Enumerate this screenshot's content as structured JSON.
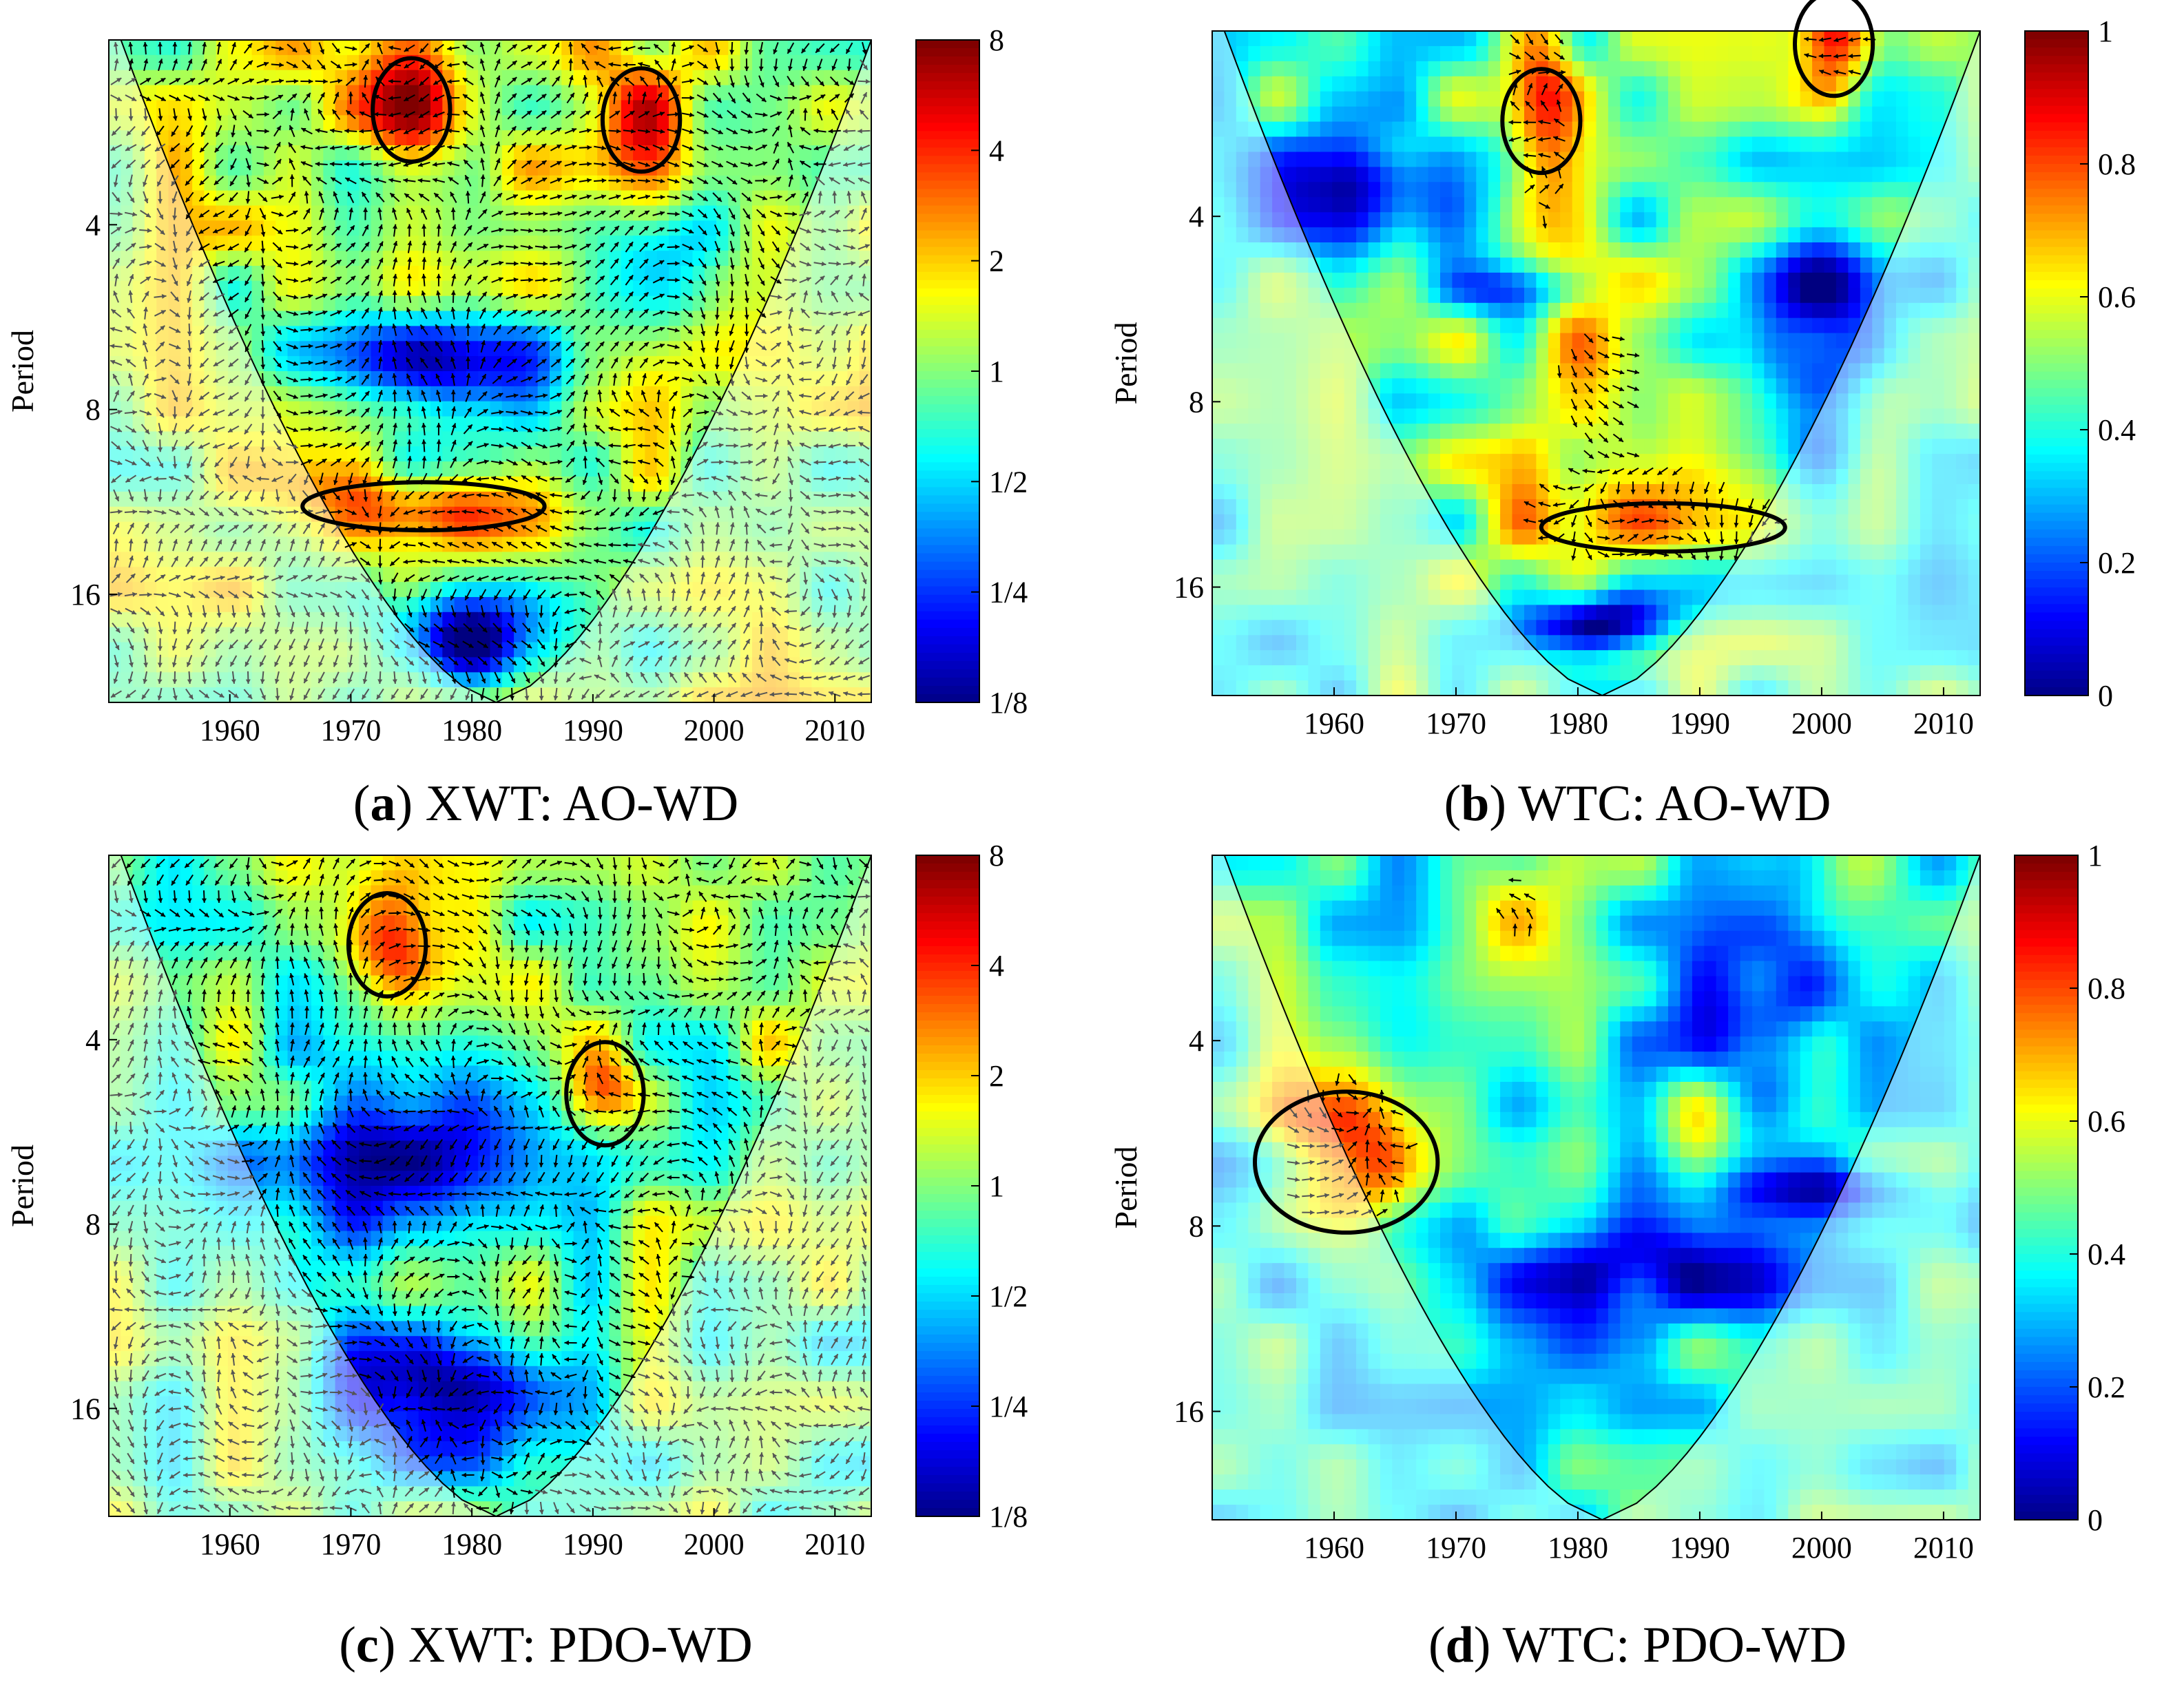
{
  "figure": {
    "panels": [
      {
        "letter": "a",
        "title": "XWT: AO-WD"
      },
      {
        "letter": "b",
        "title": "WTC: AO-WD"
      },
      {
        "letter": "c",
        "title": "XWT: PDO-WD"
      },
      {
        "letter": "d",
        "title": "WTC: PDO-WD"
      }
    ]
  },
  "chart_data": [
    {
      "id": "a",
      "type": "heatmap",
      "title": "(a) XWT: AO-WD",
      "xlabel": "",
      "ylabel": "Period",
      "xlim": [
        1950,
        2013
      ],
      "ylim": [
        2,
        24
      ],
      "yscale": "log2",
      "xticks": [
        "1960",
        "1970",
        "1980",
        "1990",
        "2000",
        "2010"
      ],
      "yticks": [
        "4",
        "8",
        "16"
      ],
      "colorbar": {
        "ticks": [
          "8",
          "4",
          "2",
          "1",
          "1/2",
          "1/4",
          "1/8"
        ],
        "range": [
          0.125,
          8
        ],
        "scale": "log2"
      },
      "significant_regions": [
        {
          "x_center": 1975,
          "period_center": 2.6,
          "label": "sig-1"
        },
        {
          "x_center": 1994,
          "period_center": 2.7,
          "label": "sig-2"
        },
        {
          "x_center": 1976,
          "period_center": 11.5,
          "label": "sig-3"
        }
      ]
    },
    {
      "id": "b",
      "type": "heatmap",
      "title": "(b) WTC: AO-WD",
      "xlabel": "",
      "ylabel": "Period",
      "xlim": [
        1950,
        2013
      ],
      "ylim": [
        2,
        24
      ],
      "yscale": "log2",
      "xticks": [
        "1960",
        "1970",
        "1980",
        "1990",
        "2000",
        "2010"
      ],
      "yticks": [
        "4",
        "8",
        "16"
      ],
      "colorbar": {
        "ticks": [
          "1",
          "0.8",
          "0.6",
          "0.4",
          "0.2",
          "0"
        ],
        "range": [
          0,
          1
        ],
        "scale": "linear"
      },
      "significant_regions": [
        {
          "x_center": 1977,
          "period_center": 2.8,
          "label": "sig-1"
        },
        {
          "x_center": 2001,
          "period_center": 2.1,
          "label": "sig-2"
        },
        {
          "x_center": 1987,
          "period_center": 12.8,
          "label": "sig-3"
        }
      ]
    },
    {
      "id": "c",
      "type": "heatmap",
      "title": "(c) XWT: PDO-WD",
      "xlabel": "",
      "ylabel": "Period",
      "xlim": [
        1950,
        2013
      ],
      "ylim": [
        2,
        24
      ],
      "yscale": "log2",
      "xticks": [
        "1960",
        "1970",
        "1980",
        "1990",
        "2000",
        "2010"
      ],
      "yticks": [
        "4",
        "8",
        "16"
      ],
      "colorbar": {
        "ticks": [
          "8",
          "4",
          "2",
          "1",
          "1/2",
          "1/4",
          "1/8"
        ],
        "range": [
          0.125,
          8
        ],
        "scale": "log2"
      },
      "significant_regions": [
        {
          "x_center": 1973,
          "period_center": 2.8,
          "label": "sig-1"
        },
        {
          "x_center": 1991,
          "period_center": 4.9,
          "label": "sig-2"
        }
      ]
    },
    {
      "id": "d",
      "type": "heatmap",
      "title": "(d) WTC: PDO-WD",
      "xlabel": "",
      "ylabel": "Period",
      "xlim": [
        1950,
        2013
      ],
      "ylim": [
        2,
        24
      ],
      "yscale": "log2",
      "xticks": [
        "1960",
        "1970",
        "1980",
        "1990",
        "2000",
        "2010"
      ],
      "yticks": [
        "4",
        "8",
        "16"
      ],
      "colorbar": {
        "ticks": [
          "1",
          "0.8",
          "0.6",
          "0.4",
          "0.2",
          "0"
        ],
        "range": [
          0,
          1
        ],
        "scale": "linear"
      },
      "significant_regions": [
        {
          "x_center": 1961,
          "period_center": 6.3,
          "label": "sig-1"
        }
      ]
    }
  ]
}
